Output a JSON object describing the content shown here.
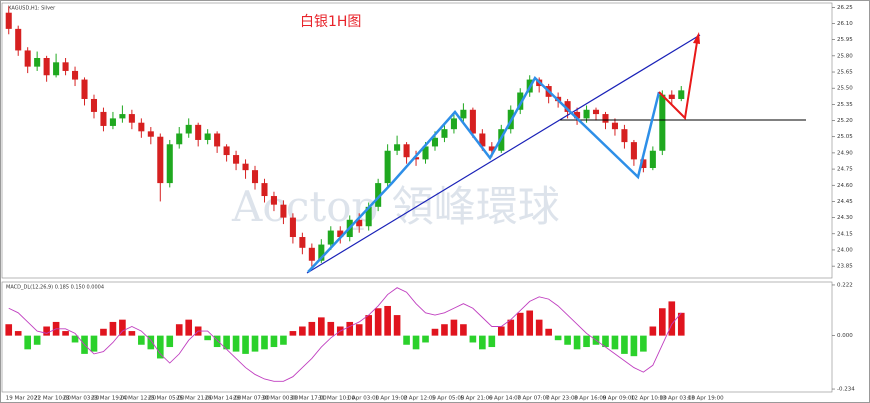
{
  "chart_data": [
    {
      "type": "candlestick",
      "title": "XAGUSD,H1: Silver",
      "annotation": "白银1H图",
      "watermark": "Acctop 領峰環球",
      "up_color": "#1fa81f",
      "down_color": "#d62020",
      "open": [
        26.2,
        26.05,
        25.85,
        25.7,
        25.78,
        25.62,
        25.74,
        25.66,
        25.58,
        25.4,
        25.28,
        25.15,
        25.22,
        25.26,
        25.18,
        25.1,
        25.05,
        24.62,
        24.98,
        25.08,
        25.16,
        25.02,
        25.08,
        24.96,
        24.88,
        24.8,
        24.74,
        24.62,
        24.5,
        24.42,
        24.3,
        24.12,
        24.02,
        23.9,
        24.05,
        24.18,
        24.12,
        24.28,
        24.22,
        24.4,
        24.62,
        24.92,
        24.98,
        24.86,
        24.84,
        24.96,
        25.04,
        25.12,
        25.22,
        25.3,
        25.08,
        24.96,
        24.92,
        25.12,
        25.3,
        25.46,
        25.58,
        25.52,
        25.42,
        25.38,
        25.28,
        25.22,
        25.3,
        25.26,
        25.18,
        25.12,
        25.0,
        24.84,
        24.76,
        24.92,
        25.44,
        25.4
      ],
      "high": [
        26.26,
        26.08,
        25.88,
        25.84,
        25.8,
        25.82,
        25.78,
        25.7,
        25.6,
        25.44,
        25.32,
        25.28,
        25.34,
        25.3,
        25.22,
        25.14,
        25.08,
        25.02,
        25.14,
        25.22,
        25.18,
        25.12,
        25.1,
        24.98,
        24.92,
        24.84,
        24.78,
        24.66,
        24.54,
        24.46,
        24.34,
        24.16,
        24.06,
        24.1,
        24.22,
        24.22,
        24.32,
        24.34,
        24.44,
        24.66,
        24.98,
        25.06,
        25.0,
        24.92,
        25.0,
        25.1,
        25.16,
        25.26,
        25.36,
        25.32,
        25.12,
        25.0,
        25.16,
        25.34,
        25.5,
        25.62,
        25.6,
        25.54,
        25.46,
        25.4,
        25.32,
        25.34,
        25.32,
        25.28,
        25.22,
        25.16,
        25.02,
        24.88,
        24.96,
        25.48,
        25.48,
        25.52
      ],
      "low": [
        26.0,
        25.8,
        25.64,
        25.66,
        25.56,
        25.6,
        25.62,
        25.52,
        25.34,
        25.22,
        25.1,
        25.12,
        25.18,
        25.12,
        25.04,
        24.98,
        24.45,
        24.58,
        24.94,
        25.04,
        24.96,
        24.98,
        24.9,
        24.82,
        24.74,
        24.66,
        24.56,
        24.44,
        24.36,
        24.24,
        24.06,
        23.96,
        23.84,
        23.88,
        24.0,
        24.06,
        24.08,
        24.16,
        24.18,
        24.36,
        24.58,
        24.88,
        24.8,
        24.78,
        24.8,
        24.92,
        25.0,
        25.08,
        25.18,
        25.04,
        24.92,
        24.86,
        24.9,
        25.08,
        25.26,
        25.42,
        25.46,
        25.36,
        25.32,
        25.22,
        25.16,
        25.18,
        25.2,
        25.12,
        25.06,
        24.94,
        24.78,
        24.72,
        24.74,
        24.88,
        25.34,
        25.38
      ],
      "close": [
        26.05,
        25.85,
        25.7,
        25.78,
        25.62,
        25.74,
        25.66,
        25.58,
        25.4,
        25.28,
        25.15,
        25.22,
        25.26,
        25.18,
        25.1,
        25.05,
        24.62,
        24.98,
        25.08,
        25.16,
        25.02,
        25.08,
        24.96,
        24.88,
        24.8,
        24.74,
        24.62,
        24.5,
        24.42,
        24.3,
        24.12,
        24.02,
        23.9,
        24.05,
        24.18,
        24.12,
        24.28,
        24.22,
        24.4,
        24.62,
        24.92,
        24.98,
        24.86,
        24.84,
        24.96,
        25.04,
        25.12,
        25.22,
        25.3,
        25.08,
        24.96,
        24.92,
        25.12,
        25.3,
        25.46,
        25.58,
        25.52,
        25.42,
        25.38,
        25.28,
        25.22,
        25.3,
        25.26,
        25.18,
        25.12,
        25.0,
        24.84,
        24.76,
        24.92,
        25.44,
        25.4,
        25.48
      ],
      "ylim": [
        23.74,
        26.29
      ],
      "yticks": [
        23.85,
        {
          "value": 24.0,
          "label": "24.00"
        },
        24.15,
        {
          "value": 24.3,
          "label": "24.30"
        },
        24.45,
        {
          "value": 24.6,
          "label": "24.60"
        },
        24.75,
        {
          "value": 24.9,
          "label": "24.90"
        },
        25.05,
        {
          "value": 25.2,
          "label": "25.20"
        },
        25.35,
        {
          "value": 25.5,
          "label": "25.50"
        },
        25.65,
        {
          "value": 25.8,
          "label": "25.80"
        },
        25.95,
        {
          "value": 26.1,
          "label": "26.10"
        },
        26.25
      ]
    },
    {
      "type": "macd",
      "title": "MACD_DL(12,26,9) 0.185 0.150 0.0004",
      "up_color": "#e0141e",
      "down_color": "#2bd12b",
      "signal_color": "#c03fc0",
      "categories": [
        "19 Mar 2021",
        null,
        null,
        "22 Mar 10:00",
        null,
        null,
        "23 Mar 03:00",
        null,
        null,
        "23 Mar 19:00",
        null,
        null,
        "24 Mar 12:00",
        null,
        null,
        "25 Mar 05:00",
        null,
        null,
        "25 Mar 21:00",
        null,
        null,
        "26 Mar 14:00",
        null,
        null,
        "29 Mar 07:00",
        null,
        null,
        "30 Mar 00:00",
        null,
        null,
        "30 Mar 17:00",
        null,
        null,
        "31 Mar 10:00",
        null,
        null,
        "1 Apr 03:00",
        null,
        null,
        "1 Apr 19:00",
        null,
        null,
        "2 Apr 12:00",
        null,
        null,
        "5 Apr 05:00",
        null,
        null,
        "5 Apr 21:00",
        null,
        null,
        "6 Apr 14:00",
        null,
        null,
        "7 Apr 07:00",
        null,
        null,
        "7 Apr 23:00",
        null,
        null,
        "8 Apr 16:00",
        null,
        null,
        "9 Apr 09:00",
        null,
        null,
        "12 Apr 10:00",
        null,
        null,
        "13 Apr 03:00",
        null,
        null,
        "13 Apr 19:00",
        null,
        null
      ],
      "histogram": [
        0.05,
        0.02,
        -0.06,
        -0.04,
        0.04,
        0.06,
        0.02,
        -0.03,
        -0.08,
        -0.07,
        0.03,
        0.06,
        0.07,
        0.02,
        -0.04,
        -0.06,
        -0.1,
        -0.05,
        0.05,
        0.07,
        0.04,
        -0.02,
        -0.05,
        -0.06,
        -0.07,
        -0.08,
        -0.07,
        -0.06,
        -0.05,
        -0.04,
        0.02,
        0.04,
        0.06,
        0.08,
        0.06,
        0.04,
        0.06,
        0.05,
        0.09,
        0.12,
        0.13,
        0.09,
        -0.04,
        -0.06,
        -0.03,
        0.03,
        0.05,
        0.07,
        0.05,
        -0.03,
        -0.06,
        -0.05,
        0.04,
        0.07,
        0.1,
        0.11,
        0.07,
        0.03,
        -0.02,
        -0.04,
        -0.06,
        -0.05,
        -0.04,
        -0.05,
        -0.06,
        -0.08,
        -0.09,
        -0.07,
        0.04,
        0.12,
        0.15,
        0.1
      ],
      "signal": [
        0.12,
        0.1,
        0.06,
        0.02,
        0.01,
        0.03,
        0.03,
        0.01,
        -0.04,
        -0.08,
        -0.07,
        -0.03,
        0.02,
        0.04,
        0.02,
        -0.02,
        -0.08,
        -0.12,
        -0.08,
        -0.02,
        0.02,
        0.02,
        -0.02,
        -0.06,
        -0.1,
        -0.14,
        -0.17,
        -0.19,
        -0.2,
        -0.2,
        -0.18,
        -0.14,
        -0.1,
        -0.05,
        -0.01,
        0.02,
        0.04,
        0.06,
        0.09,
        0.13,
        0.18,
        0.21,
        0.19,
        0.14,
        0.1,
        0.09,
        0.1,
        0.12,
        0.14,
        0.12,
        0.08,
        0.04,
        0.04,
        0.07,
        0.11,
        0.15,
        0.17,
        0.16,
        0.13,
        0.09,
        0.05,
        0.01,
        -0.02,
        -0.05,
        -0.08,
        -0.11,
        -0.14,
        -0.16,
        -0.13,
        -0.04,
        0.05,
        0.1
      ],
      "ylim": [
        -0.247,
        0.235
      ],
      "yticks": [
        -0.234,
        {
          "value": 0,
          "label": "0.000"
        },
        0.222
      ]
    }
  ]
}
